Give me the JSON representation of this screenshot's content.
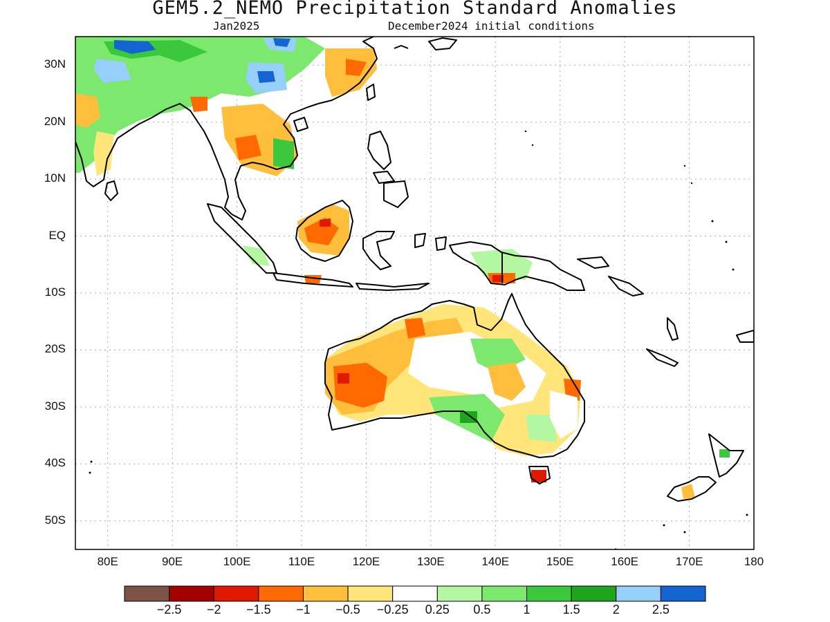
{
  "title": "GEM5.2_NEMO Precipitation Standard Anomalies",
  "subtitle_left": "Jan2025",
  "subtitle_right": "December2024 initial conditions",
  "map": {
    "lon_range": [
      75,
      180
    ],
    "lat_range": [
      -55,
      35
    ],
    "lat_ticks": [
      {
        "value": 30,
        "label": "30N"
      },
      {
        "value": 20,
        "label": "20N"
      },
      {
        "value": 10,
        "label": "10N"
      },
      {
        "value": 0,
        "label": "EQ"
      },
      {
        "value": -10,
        "label": "10S"
      },
      {
        "value": -20,
        "label": "20S"
      },
      {
        "value": -30,
        "label": "30S"
      },
      {
        "value": -40,
        "label": "40S"
      },
      {
        "value": -50,
        "label": "50S"
      }
    ],
    "lon_ticks": [
      {
        "value": 80,
        "label": "80E"
      },
      {
        "value": 90,
        "label": "90E"
      },
      {
        "value": 100,
        "label": "100E"
      },
      {
        "value": 110,
        "label": "110E"
      },
      {
        "value": 120,
        "label": "120E"
      },
      {
        "value": 130,
        "label": "130E"
      },
      {
        "value": 140,
        "label": "140E"
      },
      {
        "value": 150,
        "label": "150E"
      },
      {
        "value": 160,
        "label": "160E"
      },
      {
        "value": 170,
        "label": "170E"
      },
      {
        "value": 180,
        "label": "180"
      }
    ],
    "grid": "dotted"
  },
  "colorbar": {
    "colors": [
      "#7b5446",
      "#a30000",
      "#e01a00",
      "#ff6a00",
      "#ffbe3c",
      "#ffe57a",
      "#ffffff",
      "#b4f7a3",
      "#7ce86e",
      "#3cc83c",
      "#1ea51e",
      "#96d0fa",
      "#1464d2"
    ],
    "labels": [
      "−2.5",
      "−2",
      "−1.5",
      "−1",
      "−0.5",
      "−0.25",
      "0.25",
      "0.5",
      "1",
      "1.5",
      "2",
      "2.5"
    ]
  },
  "colors": {
    "land_outline": "#000000",
    "grid": "#aaaaaa"
  }
}
